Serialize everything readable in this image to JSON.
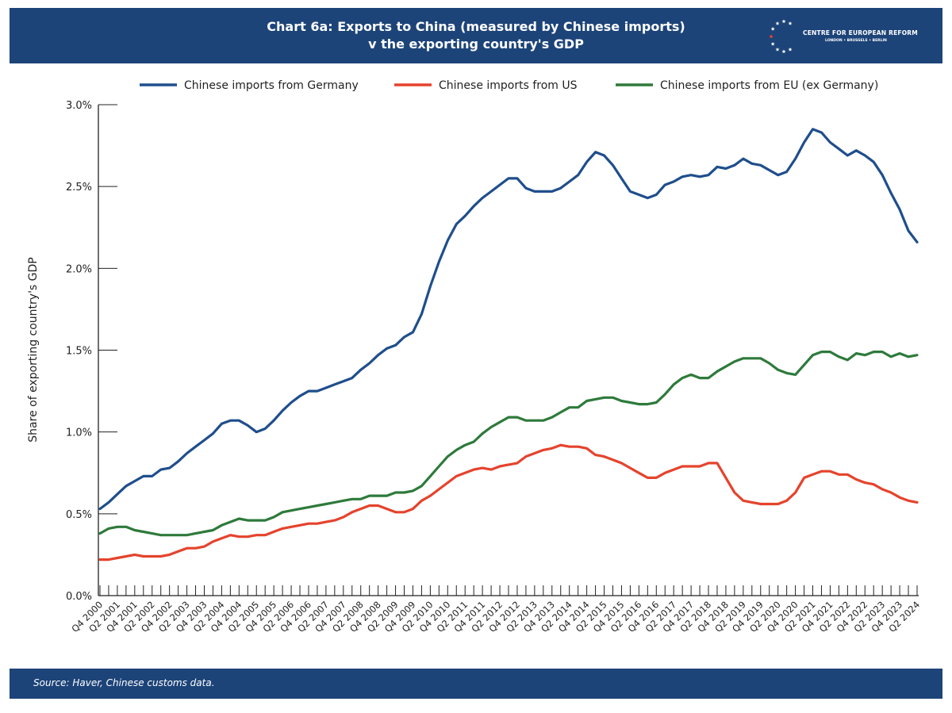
{
  "header": {
    "title_line1": "Chart 6a: Exports to China (measured by Chinese imports)",
    "title_line2": "v the exporting country's GDP",
    "logo_name": "CENTRE FOR EUROPEAN REFORM",
    "logo_cities": "LONDON • BRUSSELS • BERLIN"
  },
  "footer": {
    "source": "Source: Haver, Chinese customs data."
  },
  "chart_data": {
    "type": "line",
    "title": "Chart 6a: Exports to China (measured by Chinese imports) v the exporting country's GDP",
    "xlabel": "",
    "ylabel": "Share of exporting country's GDP",
    "ylim": [
      0,
      3.0
    ],
    "y_ticks": [
      0,
      0.5,
      1.0,
      1.5,
      2.0,
      2.5,
      3.0
    ],
    "y_tick_labels": [
      "0.0%",
      "0.5%",
      "1.0%",
      "1.5%",
      "2.0%",
      "2.5%",
      "3.0%"
    ],
    "x_start": "Q4 2000",
    "x_end": "Q2 2024",
    "x_frequency": "quarterly",
    "x_tick_labels": [
      "Q4 2000",
      "Q2 2001",
      "Q4 2001",
      "Q2 2002",
      "Q4 2002",
      "Q2 2003",
      "Q4 2003",
      "Q2 2004",
      "Q4 2004",
      "Q2 2005",
      "Q4 2005",
      "Q2 2006",
      "Q4 2006",
      "Q2 2007",
      "Q4 2007",
      "Q2 2008",
      "Q4 2008",
      "Q2 2009",
      "Q4 2009",
      "Q2 2010",
      "Q4 2010",
      "Q2 2011",
      "Q4 2011",
      "Q2 2012",
      "Q4 2012",
      "Q2 2013",
      "Q4 2013",
      "Q2 2014",
      "Q4 2014",
      "Q2 2015",
      "Q4 2015",
      "Q2 2016",
      "Q4 2016",
      "Q2 2017",
      "Q4 2017",
      "Q2 2018",
      "Q4 2018",
      "Q2 2019",
      "Q4 2019",
      "Q2 2020",
      "Q4 2020",
      "Q2 2021",
      "Q4 2021",
      "Q2 2022",
      "Q4 2022",
      "Q2 2023",
      "Q4 2023",
      "Q2 2024"
    ],
    "grid": false,
    "legend_position": "top",
    "series": [
      {
        "name": "Chinese imports from Germany",
        "color": "#1f4e8c",
        "values": [
          0.53,
          0.57,
          0.62,
          0.67,
          0.7,
          0.73,
          0.73,
          0.77,
          0.78,
          0.82,
          0.87,
          0.91,
          0.95,
          0.99,
          1.05,
          1.07,
          1.07,
          1.04,
          1.0,
          1.02,
          1.07,
          1.13,
          1.18,
          1.22,
          1.25,
          1.25,
          1.27,
          1.29,
          1.31,
          1.33,
          1.38,
          1.42,
          1.47,
          1.51,
          1.53,
          1.58,
          1.61,
          1.72,
          1.89,
          2.04,
          2.17,
          2.27,
          2.32,
          2.38,
          2.43,
          2.47,
          2.51,
          2.55,
          2.55,
          2.49,
          2.47,
          2.47,
          2.47,
          2.49,
          2.53,
          2.57,
          2.65,
          2.71,
          2.69,
          2.63,
          2.55,
          2.47,
          2.45,
          2.43,
          2.45,
          2.51,
          2.53,
          2.56,
          2.57,
          2.56,
          2.57,
          2.62,
          2.61,
          2.63,
          2.67,
          2.64,
          2.63,
          2.6,
          2.57,
          2.59,
          2.67,
          2.77,
          2.85,
          2.83,
          2.77,
          2.73,
          2.69,
          2.72,
          2.69,
          2.65,
          2.57,
          2.46,
          2.36,
          2.23,
          2.16
        ]
      },
      {
        "name": "Chinese imports from US",
        "color": "#e5432d",
        "values": [
          0.22,
          0.22,
          0.23,
          0.24,
          0.25,
          0.24,
          0.24,
          0.24,
          0.25,
          0.27,
          0.29,
          0.29,
          0.3,
          0.33,
          0.35,
          0.37,
          0.36,
          0.36,
          0.37,
          0.37,
          0.39,
          0.41,
          0.42,
          0.43,
          0.44,
          0.44,
          0.45,
          0.46,
          0.48,
          0.51,
          0.53,
          0.55,
          0.55,
          0.53,
          0.51,
          0.51,
          0.53,
          0.58,
          0.61,
          0.65,
          0.69,
          0.73,
          0.75,
          0.77,
          0.78,
          0.77,
          0.79,
          0.8,
          0.81,
          0.85,
          0.87,
          0.89,
          0.9,
          0.92,
          0.91,
          0.91,
          0.9,
          0.86,
          0.85,
          0.83,
          0.81,
          0.78,
          0.75,
          0.72,
          0.72,
          0.75,
          0.77,
          0.79,
          0.79,
          0.79,
          0.81,
          0.81,
          0.72,
          0.63,
          0.58,
          0.57,
          0.56,
          0.56,
          0.56,
          0.58,
          0.63,
          0.72,
          0.74,
          0.76,
          0.76,
          0.74,
          0.74,
          0.71,
          0.69,
          0.68,
          0.65,
          0.63,
          0.6,
          0.58,
          0.57
        ]
      },
      {
        "name": "Chinese imports from EU (ex Germany)",
        "color": "#2e7a3b",
        "values": [
          0.38,
          0.41,
          0.42,
          0.42,
          0.4,
          0.39,
          0.38,
          0.37,
          0.37,
          0.37,
          0.37,
          0.38,
          0.39,
          0.4,
          0.43,
          0.45,
          0.47,
          0.46,
          0.46,
          0.46,
          0.48,
          0.51,
          0.52,
          0.53,
          0.54,
          0.55,
          0.56,
          0.57,
          0.58,
          0.59,
          0.59,
          0.61,
          0.61,
          0.61,
          0.63,
          0.63,
          0.64,
          0.67,
          0.73,
          0.79,
          0.85,
          0.89,
          0.92,
          0.94,
          0.99,
          1.03,
          1.06,
          1.09,
          1.09,
          1.07,
          1.07,
          1.07,
          1.09,
          1.12,
          1.15,
          1.15,
          1.19,
          1.2,
          1.21,
          1.21,
          1.19,
          1.18,
          1.17,
          1.17,
          1.18,
          1.23,
          1.29,
          1.33,
          1.35,
          1.33,
          1.33,
          1.37,
          1.4,
          1.43,
          1.45,
          1.45,
          1.45,
          1.42,
          1.38,
          1.36,
          1.35,
          1.41,
          1.47,
          1.49,
          1.49,
          1.46,
          1.44,
          1.48,
          1.47,
          1.49,
          1.49,
          1.46,
          1.48,
          1.46,
          1.47
        ]
      }
    ]
  }
}
